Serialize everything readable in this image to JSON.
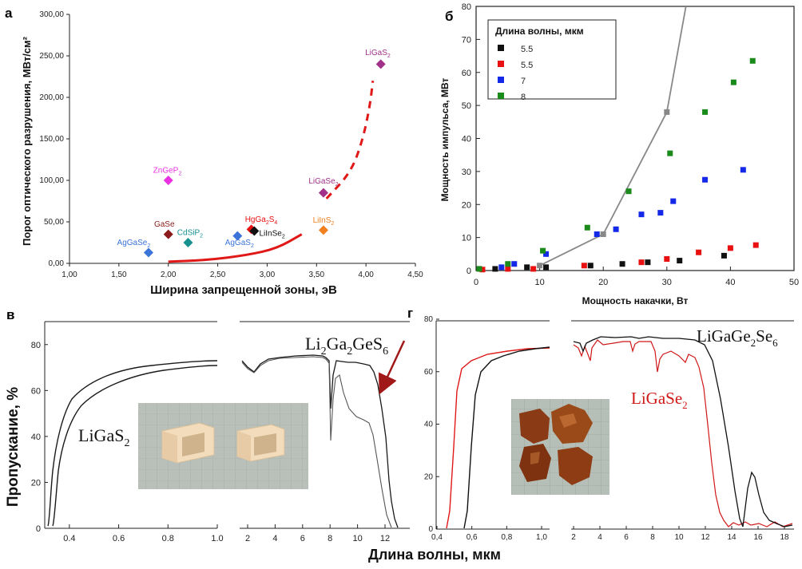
{
  "panels": {
    "a": "а",
    "b": "б",
    "v": "в",
    "g": "г"
  },
  "chart_data": [
    {
      "id": "a",
      "type": "scatter",
      "xlabel": "Ширина запрещенной зоны, эВ",
      "ylabel": "Порог оптического разрушения, МВт/см²",
      "xlim": [
        1.0,
        4.5
      ],
      "ylim": [
        0,
        300
      ],
      "xticks": [
        "1,00",
        "1,50",
        "2,00",
        "2,50",
        "3,00",
        "3,50",
        "4,00",
        "4,50"
      ],
      "xtick_values": [
        1.0,
        1.5,
        2.0,
        2.5,
        3.0,
        3.5,
        4.0,
        4.5
      ],
      "yticks": [
        "0,00",
        "50,00",
        "100,00",
        "150,00",
        "200,00",
        "250,00",
        "300,00"
      ],
      "ytick_values": [
        0,
        50,
        100,
        150,
        200,
        250,
        300
      ],
      "points": [
        {
          "x": 1.8,
          "y": 13,
          "label": "AgGaSe₂",
          "color": "#3a74d8",
          "lx": 1.65,
          "ly": 22
        },
        {
          "x": 2.0,
          "y": 35,
          "label": "GaSe",
          "color": "#8b1a1a",
          "lx": 1.96,
          "ly": 44
        },
        {
          "x": 2.0,
          "y": 100,
          "label": "ZnGeP₂",
          "color": "#e832e0",
          "lx": 1.99,
          "ly": 109
        },
        {
          "x": 2.2,
          "y": 25,
          "label": "CdSiP₂",
          "color": "#179090",
          "lx": 2.22,
          "ly": 34
        },
        {
          "x": 2.7,
          "y": 33,
          "label": "AgGaS₂",
          "color": "#3a74d8",
          "lx": 2.72,
          "ly": 22
        },
        {
          "x": 2.84,
          "y": 41,
          "label": "HgGa₂S₄",
          "color": "#e81010",
          "lx": 2.94,
          "ly": 50
        },
        {
          "x": 2.87,
          "y": 39,
          "label": "LiInSe₂",
          "color": "#111111",
          "lx": 3.05,
          "ly": 33
        },
        {
          "x": 3.57,
          "y": 40,
          "label": "LiInS₂",
          "color": "#f08020",
          "lx": 3.57,
          "ly": 49
        },
        {
          "x": 3.57,
          "y": 85,
          "label": "LiGaSe₂",
          "color": "#a03088",
          "lx": 3.57,
          "ly": 96
        },
        {
          "x": 4.15,
          "y": 240,
          "label": "LiGaS₂",
          "color": "#a03088",
          "lx": 4.12,
          "ly": 251
        }
      ],
      "curve_solid": [
        [
          2.0,
          2
        ],
        [
          2.4,
          4
        ],
        [
          2.8,
          10
        ],
        [
          3.1,
          18
        ],
        [
          3.35,
          35
        ]
      ],
      "curve_dashed": [
        [
          3.6,
          78
        ],
        [
          3.85,
          110
        ],
        [
          3.97,
          150
        ],
        [
          4.04,
          190
        ],
        [
          4.07,
          220
        ]
      ]
    },
    {
      "id": "b",
      "type": "scatter",
      "xlabel": "Мощность накачки, Вт",
      "ylabel": "Мощность импульса, МВт",
      "xlim": [
        0,
        50
      ],
      "ylim": [
        0,
        80
      ],
      "xticks": [
        "0",
        "10",
        "20",
        "30",
        "40",
        "50"
      ],
      "xtick_values": [
        0,
        10,
        20,
        30,
        40,
        50
      ],
      "yticks": [
        "0",
        "10",
        "20",
        "30",
        "40",
        "50",
        "60",
        "70",
        "80"
      ],
      "ytick_values": [
        0,
        10,
        20,
        30,
        40,
        50,
        60,
        70,
        80
      ],
      "legend_title": "Длина волны, мкм",
      "legend_position": "top-left",
      "series": [
        {
          "name": "5.5",
          "color": "#111111",
          "x": [
            3,
            8,
            11,
            18,
            23,
            27,
            32,
            39
          ],
          "y": [
            0.5,
            1,
            1,
            1.5,
            2,
            2.5,
            3,
            4.5
          ]
        },
        {
          "name": "5.5",
          "color": "#e81010",
          "x": [
            0.5,
            1,
            5,
            9,
            17,
            26,
            30,
            35,
            40,
            44
          ],
          "y": [
            0.5,
            0.3,
            0.5,
            0.5,
            1.5,
            2.5,
            3.5,
            5.5,
            6.8,
            7.7
          ]
        },
        {
          "name": "7",
          "color": "#1428e8",
          "x": [
            4,
            6,
            11,
            19,
            22,
            26,
            29,
            31,
            36,
            42
          ],
          "y": [
            1,
            2,
            5,
            11,
            12.5,
            17,
            17.5,
            21,
            27.5,
            30.5
          ]
        },
        {
          "name": "8",
          "color": "#1a8a1a",
          "x": [
            0.5,
            5,
            10.5,
            17.5,
            24,
            30.5,
            36,
            40.5,
            43.5
          ],
          "y": [
            0.5,
            2,
            6,
            13,
            24,
            35.5,
            48,
            57,
            63.5
          ]
        }
      ],
      "grey_line": {
        "x": [
          10,
          20,
          30,
          33
        ],
        "y": [
          1.5,
          11,
          48,
          80
        ],
        "markers_x": [
          10,
          20,
          30
        ],
        "markers_y": [
          1.5,
          11,
          48
        ]
      }
    },
    {
      "id": "v",
      "type": "line",
      "ylabel": "Пропускание, %",
      "yticks": [
        "0",
        "20",
        "40",
        "60",
        "80"
      ],
      "ytick_values": [
        0,
        20,
        40,
        60,
        80
      ],
      "left_xticks": [
        "0.4",
        "0.6",
        "0.8",
        "1.0"
      ],
      "left_xtick_values": [
        0.4,
        0.6,
        0.8,
        1.0
      ],
      "right_xticks": [
        "2",
        "4",
        "6",
        "8",
        "10",
        "12"
      ],
      "right_xtick_values": [
        2,
        4,
        6,
        8,
        10,
        12
      ],
      "label_left": "LiGaS",
      "label_left_sub": "2",
      "label_right_a": "Li",
      "label_right_sub1": "2",
      "label_right_b": "Ga",
      "label_right_sub2": "2",
      "label_right_c": "GeS",
      "label_right_sub3": "6"
    },
    {
      "id": "g",
      "type": "line",
      "yticks": [
        "0",
        "20",
        "40",
        "60",
        "80"
      ],
      "ytick_values": [
        0,
        20,
        40,
        60,
        80
      ],
      "left_xticks": [
        "0,4",
        "0,6",
        "0,8",
        "1,0"
      ],
      "left_xtick_values": [
        0.4,
        0.6,
        0.8,
        1.0
      ],
      "right_xticks": [
        "2",
        "4",
        "6",
        "8",
        "10",
        "12",
        "14",
        "16",
        "18"
      ],
      "right_xtick_values": [
        2,
        4,
        6,
        8,
        10,
        12,
        14,
        16,
        18
      ],
      "label_black_a": "LiGaGe",
      "label_black_sub1": "2",
      "label_black_b": "Se",
      "label_black_sub2": "6",
      "label_red_a": "LiGaSe",
      "label_red_sub": "2"
    }
  ],
  "bottom_xlabel": "Длина волны, мкм"
}
